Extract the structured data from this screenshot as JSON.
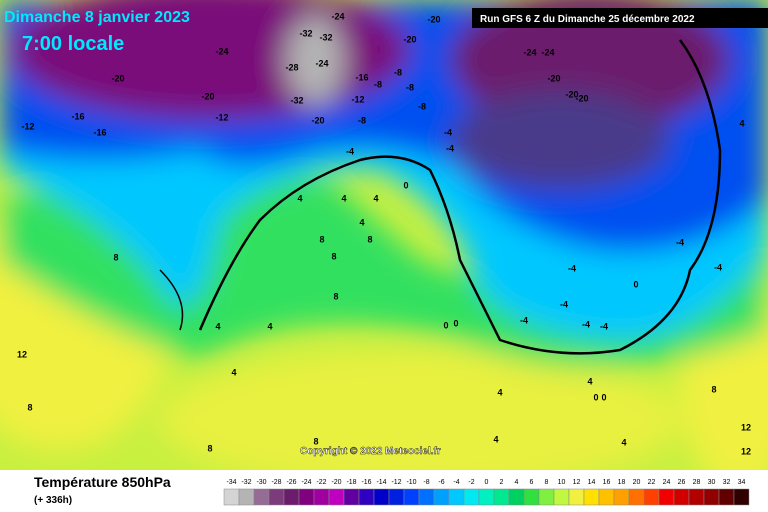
{
  "header": {
    "title": "Dimanche 8 janvier 2023",
    "time": "7:00 locale",
    "run": "Run GFS 6 Z du Dimanche 25 décembre 2022"
  },
  "copyright": "Copyright © 2022 Meteociel.fr",
  "legend": {
    "title": "Température 850hPa",
    "lead": "(+ 336h)",
    "scale": [
      {
        "value": -34,
        "color": "#d4d4d4"
      },
      {
        "value": -32,
        "color": "#b4b4b4"
      },
      {
        "value": -30,
        "color": "#946c94"
      },
      {
        "value": -28,
        "color": "#7c3c7c"
      },
      {
        "value": -26,
        "color": "#6c1c6c"
      },
      {
        "value": -24,
        "color": "#800080"
      },
      {
        "value": -22,
        "color": "#a000a0"
      },
      {
        "value": -20,
        "color": "#c000c0"
      },
      {
        "value": -18,
        "color": "#6000a0"
      },
      {
        "value": -16,
        "color": "#3000c0"
      },
      {
        "value": -14,
        "color": "#0000c8"
      },
      {
        "value": -12,
        "color": "#0020e0"
      },
      {
        "value": -10,
        "color": "#0040ff"
      },
      {
        "value": -8,
        "color": "#0070ff"
      },
      {
        "value": -6,
        "color": "#00a0ff"
      },
      {
        "value": -4,
        "color": "#00c8ff"
      },
      {
        "value": -2,
        "color": "#00e8f0"
      },
      {
        "value": 0,
        "color": "#00f0c0"
      },
      {
        "value": 2,
        "color": "#00e890"
      },
      {
        "value": 4,
        "color": "#00d060"
      },
      {
        "value": 6,
        "color": "#30e040"
      },
      {
        "value": 8,
        "color": "#80f040"
      },
      {
        "value": 10,
        "color": "#c0f840"
      },
      {
        "value": 12,
        "color": "#f0f040"
      },
      {
        "value": 14,
        "color": "#ffe000"
      },
      {
        "value": 16,
        "color": "#ffc000"
      },
      {
        "value": 18,
        "color": "#ffa000"
      },
      {
        "value": 20,
        "color": "#ff7000"
      },
      {
        "value": 22,
        "color": "#ff4000"
      },
      {
        "value": 24,
        "color": "#f00000"
      },
      {
        "value": 26,
        "color": "#d00000"
      },
      {
        "value": 28,
        "color": "#b00000"
      },
      {
        "value": 30,
        "color": "#900000"
      },
      {
        "value": 32,
        "color": "#600000"
      },
      {
        "value": 34,
        "color": "#300000"
      }
    ]
  },
  "map": {
    "contour_labels": [
      -24,
      -32,
      -32,
      -28,
      -24,
      -32,
      -20,
      -16,
      -12,
      -8,
      -8,
      -8,
      -8,
      -8,
      -20,
      -24,
      -20,
      -12,
      -20,
      -16,
      -12,
      -16,
      -20,
      -24,
      -24,
      -20,
      -20,
      -20,
      -4,
      -4,
      -4,
      0,
      4,
      4,
      4,
      4,
      8,
      8,
      8,
      8,
      8,
      12,
      8,
      4,
      4,
      4,
      0,
      0,
      -4,
      -4,
      -4,
      -4,
      -4,
      4,
      8,
      12,
      12,
      0,
      0,
      8,
      8,
      4,
      4,
      4,
      4,
      -4,
      0,
      -4
    ]
  }
}
